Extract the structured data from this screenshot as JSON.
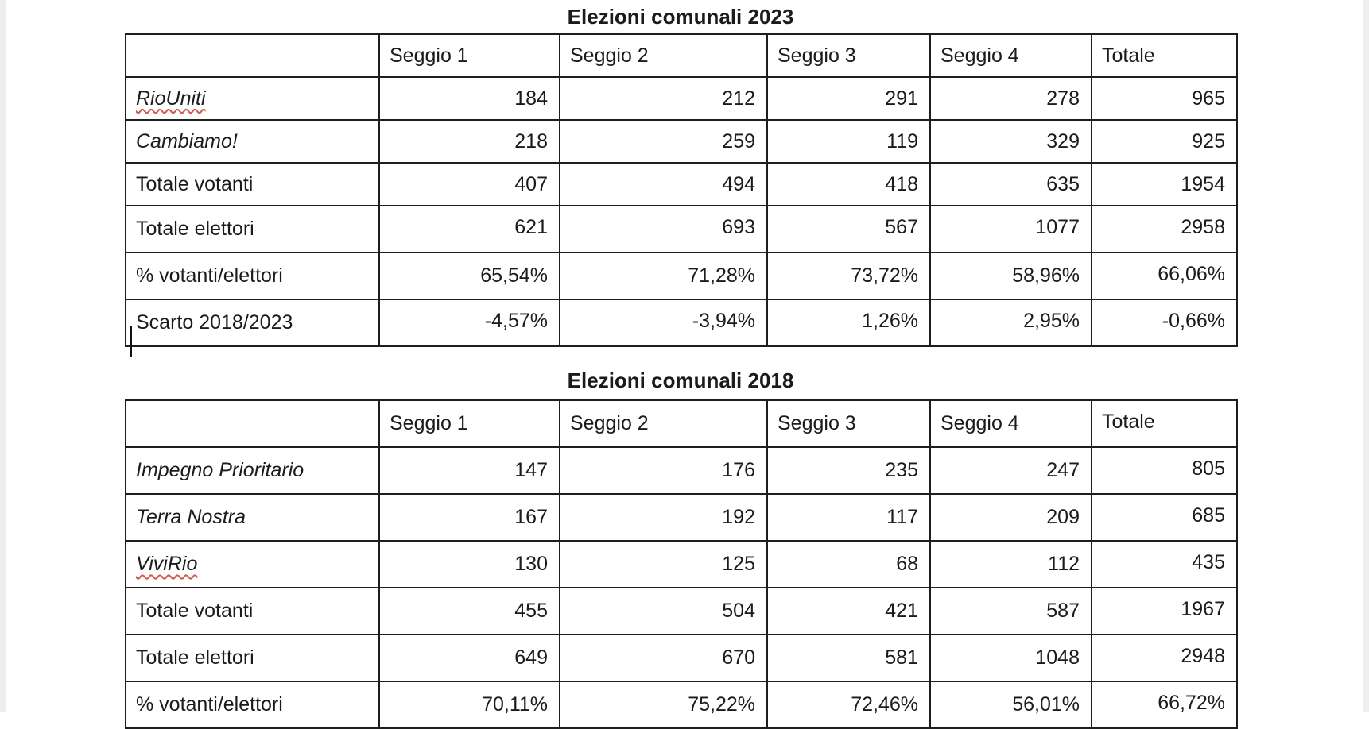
{
  "colors": {
    "table_border": "#1e1e1e",
    "text": "#1b1b1b",
    "spellcheck_underline": "#cf5b4c",
    "window_edge": "#eeeeee"
  },
  "tables": [
    {
      "title": "Elezioni comunali 2023",
      "columns": [
        "",
        "Seggio 1",
        "Seggio 2",
        "Seggio 3",
        "Seggio 4",
        "Totale"
      ],
      "rows": [
        {
          "label": "RioUniti",
          "italic": true,
          "misspelled": true,
          "values": [
            "184",
            "212",
            "291",
            "278",
            "965"
          ]
        },
        {
          "label": "Cambiamo!",
          "italic": true,
          "misspelled": false,
          "values": [
            "218",
            "259",
            "119",
            "329",
            "925"
          ]
        },
        {
          "label": "Totale votanti",
          "italic": false,
          "misspelled": false,
          "values": [
            "407",
            "494",
            "418",
            "635",
            "1954"
          ]
        },
        {
          "label": "Totale elettori",
          "italic": false,
          "misspelled": false,
          "values": [
            "621",
            "693",
            "567",
            "1077",
            "2958"
          ]
        },
        {
          "label": "% votanti/elettori",
          "italic": false,
          "misspelled": false,
          "values": [
            "65,54%",
            "71,28%",
            "73,72%",
            "58,96%",
            "66,06%"
          ]
        },
        {
          "label": "Scarto 2018/2023",
          "italic": false,
          "misspelled": false,
          "values": [
            "-4,57%",
            "-3,94%",
            "1,26%",
            "2,95%",
            "-0,66%"
          ]
        }
      ]
    },
    {
      "title": "Elezioni comunali 2018",
      "columns": [
        "",
        "Seggio 1",
        "Seggio 2",
        "Seggio 3",
        "Seggio 4",
        "Totale"
      ],
      "rows": [
        {
          "label": "Impegno Prioritario",
          "italic": true,
          "misspelled": false,
          "values": [
            "147",
            "176",
            "235",
            "247",
            "805"
          ]
        },
        {
          "label": "Terra Nostra",
          "italic": true,
          "misspelled": false,
          "values": [
            "167",
            "192",
            "117",
            "209",
            "685"
          ]
        },
        {
          "label": "ViviRio",
          "italic": true,
          "misspelled": true,
          "values": [
            "130",
            "125",
            "68",
            "112",
            "435"
          ]
        },
        {
          "label": "Totale votanti",
          "italic": false,
          "misspelled": false,
          "values": [
            "455",
            "504",
            "421",
            "587",
            "1967"
          ]
        },
        {
          "label": "Totale elettori",
          "italic": false,
          "misspelled": false,
          "values": [
            "649",
            "670",
            "581",
            "1048",
            "2948"
          ]
        },
        {
          "label": "% votanti/elettori",
          "italic": false,
          "misspelled": false,
          "values": [
            "70,11%",
            "75,22%",
            "72,46%",
            "56,01%",
            "66,72%"
          ]
        }
      ]
    }
  ]
}
